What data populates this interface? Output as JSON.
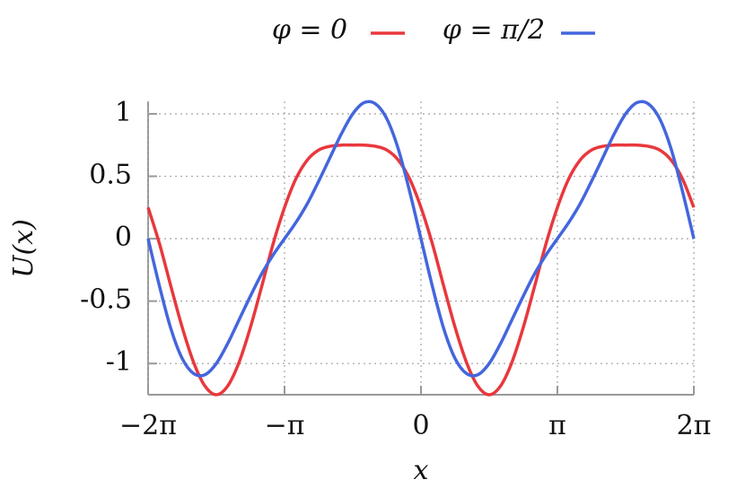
{
  "chart_data": {
    "type": "line",
    "xlabel": "x",
    "ylabel": "U(x)",
    "x": [
      -6.2832,
      -6.0214,
      -5.7596,
      -5.4978,
      -5.236,
      -4.9742,
      -4.7124,
      -4.4506,
      -4.1888,
      -3.927,
      -3.6652,
      -3.4034,
      -3.1416,
      -2.8798,
      -2.618,
      -2.3562,
      -2.0944,
      -1.8326,
      -1.5708,
      -1.309,
      -1.0472,
      -0.7854,
      -0.5236,
      -0.2618,
      0,
      0.2618,
      0.5236,
      0.7854,
      1.0472,
      1.309,
      1.5708,
      1.8326,
      2.0944,
      2.3562,
      2.618,
      2.8798,
      3.1416,
      3.4034,
      3.6652,
      3.927,
      4.1888,
      4.4506,
      4.7124,
      4.9742,
      5.236,
      5.4978,
      5.7596,
      6.0214,
      6.2832
    ],
    "series": [
      {
        "name": "φ = 0",
        "color": "#e8383d",
        "values": [
          0.25,
          -0.04,
          -0.38,
          -0.71,
          -0.99,
          -1.18,
          -1.25,
          -1.18,
          -0.99,
          -0.71,
          -0.38,
          -0.04,
          0.25,
          0.48,
          0.63,
          0.71,
          0.74,
          0.75,
          0.75,
          0.75,
          0.74,
          0.71,
          0.63,
          0.48,
          0.25,
          -0.04,
          -0.38,
          -0.71,
          -0.99,
          -1.18,
          -1.25,
          -1.18,
          -0.99,
          -0.71,
          -0.38,
          -0.04,
          0.25,
          0.48,
          0.63,
          0.71,
          0.74,
          0.75,
          0.75,
          0.75,
          0.74,
          0.71,
          0.63,
          0.48,
          0.25
        ]
      },
      {
        "name": "φ = π/2",
        "color": "#4466dd",
        "values": [
          0,
          -0.38,
          -0.72,
          -0.96,
          -1.08,
          -1.09,
          -1,
          -0.84,
          -0.65,
          -0.46,
          -0.28,
          -0.13,
          0,
          0.13,
          0.28,
          0.46,
          0.65,
          0.84,
          1,
          1.09,
          1.08,
          0.96,
          0.72,
          0.38,
          0,
          -0.38,
          -0.72,
          -0.96,
          -1.08,
          -1.09,
          -1,
          -0.84,
          -0.65,
          -0.46,
          -0.28,
          -0.13,
          0,
          0.13,
          0.28,
          0.46,
          0.65,
          0.84,
          1,
          1.09,
          1.08,
          0.96,
          0.72,
          0.38,
          0
        ]
      }
    ],
    "xlim": [
      -6.2832,
      6.2832
    ],
    "xticks": [
      {
        "value": -6.2832,
        "label": "−2π"
      },
      {
        "value": -3.1416,
        "label": "−π"
      },
      0,
      {
        "value": 3.1416,
        "label": "π"
      },
      {
        "value": 6.2832,
        "label": "2π"
      }
    ],
    "ylim": [
      -1.25,
      1.1
    ],
    "yticks": [
      -1,
      -0.5,
      0,
      0.5,
      1
    ],
    "grid": true,
    "legend": "top"
  }
}
